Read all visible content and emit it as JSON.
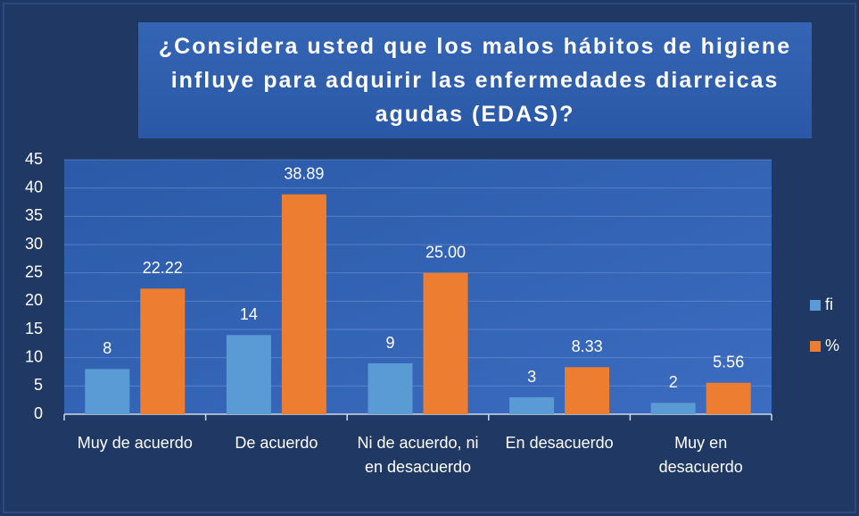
{
  "chart_data": {
    "type": "bar",
    "title": "¿Considera usted que los malos hábitos de higiene influye para adquirir las enfermedades diarreicas agudas (EDAS)?",
    "categories": [
      "Muy de acuerdo",
      "De acuerdo",
      "Ni de acuerdo, ni en desacuerdo",
      "En desacuerdo",
      "Muy en desacuerdo"
    ],
    "series": [
      {
        "name": "fi",
        "color": "#5b9bd5",
        "values": [
          8,
          14,
          9,
          3,
          2
        ]
      },
      {
        "name": "%",
        "color": "#ed7d31",
        "values": [
          22.22,
          38.89,
          25,
          8.33,
          5.56
        ],
        "value_labels": [
          "22.22",
          "38.89",
          "25.00",
          "8.33",
          "5.56"
        ]
      }
    ],
    "ylim": [
      0,
      45
    ],
    "yticks": [
      0,
      5,
      10,
      15,
      20,
      25,
      30,
      35,
      40,
      45
    ],
    "grid": true,
    "legend": "right"
  }
}
